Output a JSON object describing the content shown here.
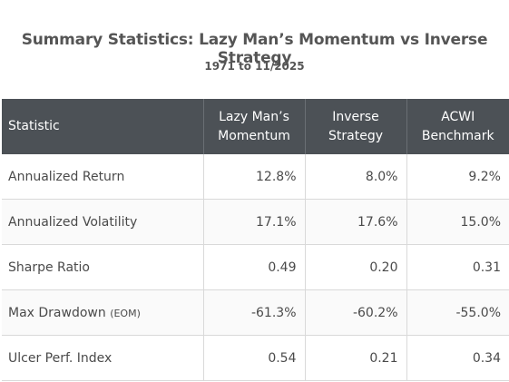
{
  "title": "Summary Statistics: Lazy Man’s Momentum vs Inverse Strategy",
  "subtitle": "1971 to 11/2025",
  "table": {
    "headers": [
      "Statistic",
      "Lazy Man’s Momentum",
      "Inverse Strategy",
      "ACWI Benchmark"
    ],
    "rows": [
      {
        "label": "Annualized Return",
        "note": "",
        "values": [
          "12.8%",
          "8.0%",
          "9.2%"
        ]
      },
      {
        "label": "Annualized Volatility",
        "note": "",
        "values": [
          "17.1%",
          "17.6%",
          "15.0%"
        ]
      },
      {
        "label": "Sharpe Ratio",
        "note": "",
        "values": [
          "0.49",
          "0.20",
          "0.31"
        ]
      },
      {
        "label": "Max Drawdown",
        "note": "(EOM)",
        "values": [
          "-61.3%",
          "-60.2%",
          "-55.0%"
        ]
      },
      {
        "label": "Ulcer Perf. Index",
        "note": "",
        "values": [
          "0.54",
          "0.21",
          "0.34"
        ]
      }
    ]
  },
  "colors": {
    "header_bg": "#4c5156",
    "header_text": "#ffffff",
    "grid": "#d9d9d9",
    "text": "#4a4a4a"
  }
}
